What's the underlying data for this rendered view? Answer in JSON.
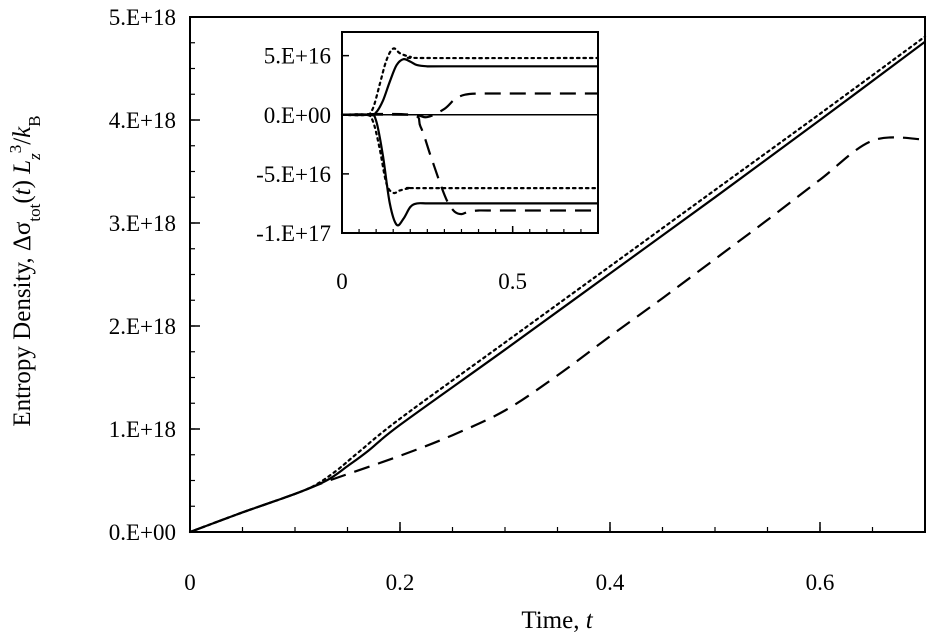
{
  "chart_data": [
    {
      "type": "line",
      "title": "",
      "xlabel": "Time, t",
      "ylabel": "Entropy Density, Δσtot(t) Lz3/kB",
      "xlim": [
        0,
        0.7
      ],
      "ylim": [
        0,
        5e+18
      ],
      "x_ticks": [
        0,
        0.2,
        0.4,
        0.6
      ],
      "x_tick_labels": [
        "0",
        "0.2",
        "0.4",
        "0.6"
      ],
      "y_ticks": [
        0,
        1e+18,
        2e+18,
        3e+18,
        4e+18,
        5e+18
      ],
      "y_tick_labels": [
        "0.E+00",
        "1.E+18",
        "2.E+18",
        "3.E+18",
        "4.E+18",
        "5.E+18"
      ],
      "grid": false,
      "legend": "none",
      "series": [
        {
          "style": "solid",
          "x": [
            0,
            0.05,
            0.1,
            0.13,
            0.15,
            0.17,
            0.2,
            0.3,
            0.4,
            0.5,
            0.6,
            0.7
          ],
          "y": [
            0,
            1.9e+17,
            3.7e+17,
            5e+17,
            6.4e+17,
            7.9e+17,
            1.04e+18,
            1.77e+18,
            2.51e+18,
            3.25e+18,
            4e+18,
            4.76e+18
          ]
        },
        {
          "style": "dotted",
          "x": [
            0,
            0.05,
            0.1,
            0.12,
            0.14,
            0.16,
            0.2,
            0.3,
            0.4,
            0.5,
            0.6,
            0.7
          ],
          "y": [
            0,
            1.9e+17,
            3.7e+17,
            4.6e+17,
            6e+17,
            7.7e+17,
            1.1e+18,
            1.84e+18,
            2.58e+18,
            3.32e+18,
            4.06e+18,
            4.81e+18
          ]
        },
        {
          "style": "dashed",
          "x": [
            0,
            0.05,
            0.1,
            0.13,
            0.2,
            0.25,
            0.3,
            0.35,
            0.4,
            0.45,
            0.5,
            0.55,
            0.6,
            0.65,
            0.7
          ],
          "y": [
            0,
            1.9e+17,
            3.7e+17,
            4.9e+17,
            7.4e+17,
            9.4e+17,
            1.18e+18,
            1.52e+18,
            1.9e+18,
            2.27e+18,
            2.65e+18,
            3.03e+18,
            3.42e+18,
            3.8e+18,
            3.81e+18
          ]
        }
      ]
    },
    {
      "type": "line",
      "title": "",
      "xlabel": "",
      "ylabel": "",
      "xlim": [
        0,
        0.75
      ],
      "ylim": [
        -1e+17,
        7e+16
      ],
      "x_ticks": [
        0,
        0.5
      ],
      "x_tick_labels": [
        "0",
        "0.5"
      ],
      "y_ticks": [
        5e+16,
        0,
        -5e+16,
        -1e+17
      ],
      "y_tick_labels": [
        "5.E+16",
        "0.E+00",
        "-5.E+16",
        "-1.E+17"
      ],
      "grid": false,
      "legend": "none",
      "zero_line": true,
      "series": [
        {
          "style": "solid",
          "x": [
            0,
            0.08,
            0.1,
            0.12,
            0.14,
            0.16,
            0.18,
            0.2,
            0.22,
            0.25,
            0.3,
            0.75
          ],
          "y": [
            0,
            0,
            2000000000000000.0,
            1.2e+16,
            2.8e+16,
            4.2e+16,
            4.7e+16,
            4.5e+16,
            4.2e+16,
            4.1e+16,
            4.1e+16,
            4.1e+16
          ]
        },
        {
          "style": "dotted",
          "x": [
            0,
            0.07,
            0.09,
            0.11,
            0.13,
            0.15,
            0.17,
            0.2,
            0.24,
            0.75
          ],
          "y": [
            0,
            0,
            5000000000000000.0,
            2.5e+16,
            4.6e+16,
            5.6e+16,
            5.2e+16,
            4.9e+16,
            4.8e+16,
            4.8e+16
          ]
        },
        {
          "style": "dashed",
          "x": [
            0,
            0.2,
            0.25,
            0.3,
            0.33,
            0.36,
            0.4,
            0.45,
            0.75
          ],
          "y": [
            0,
            0,
            -2000000000000000.0,
            5000000000000000.0,
            1.3e+16,
            1.7e+16,
            1.8e+16,
            1.8e+16,
            1.8e+16
          ]
        },
        {
          "style": "solid",
          "x": [
            0,
            0.08,
            0.1,
            0.12,
            0.14,
            0.16,
            0.18,
            0.2,
            0.22,
            0.25,
            0.3,
            0.75
          ],
          "y": [
            0,
            0,
            -5000000000000000.0,
            -3.5e+16,
            -7.5e+16,
            -9.3e+16,
            -8.8e+16,
            -7.8e+16,
            -7.5e+16,
            -7.5e+16,
            -7.5e+16,
            -7.5e+16
          ]
        },
        {
          "style": "dotted",
          "x": [
            0,
            0.07,
            0.09,
            0.11,
            0.13,
            0.15,
            0.17,
            0.2,
            0.24,
            0.75
          ],
          "y": [
            0,
            0,
            -5000000000000000.0,
            -2.8e+16,
            -5.8e+16,
            -6.6e+16,
            -6.4e+16,
            -6.2e+16,
            -6.2e+16,
            -6.2e+16
          ]
        },
        {
          "style": "dashed",
          "x": [
            0,
            0.2,
            0.23,
            0.26,
            0.29,
            0.31,
            0.33,
            0.35,
            0.37,
            0.4,
            0.45,
            0.75
          ],
          "y": [
            0,
            0,
            -1e+16,
            -3.5e+16,
            -6e+16,
            -7.4e+16,
            -8.2e+16,
            -8.4e+16,
            -8.2e+16,
            -8.1e+16,
            -8.1e+16,
            -8.1e+16
          ]
        }
      ]
    }
  ]
}
